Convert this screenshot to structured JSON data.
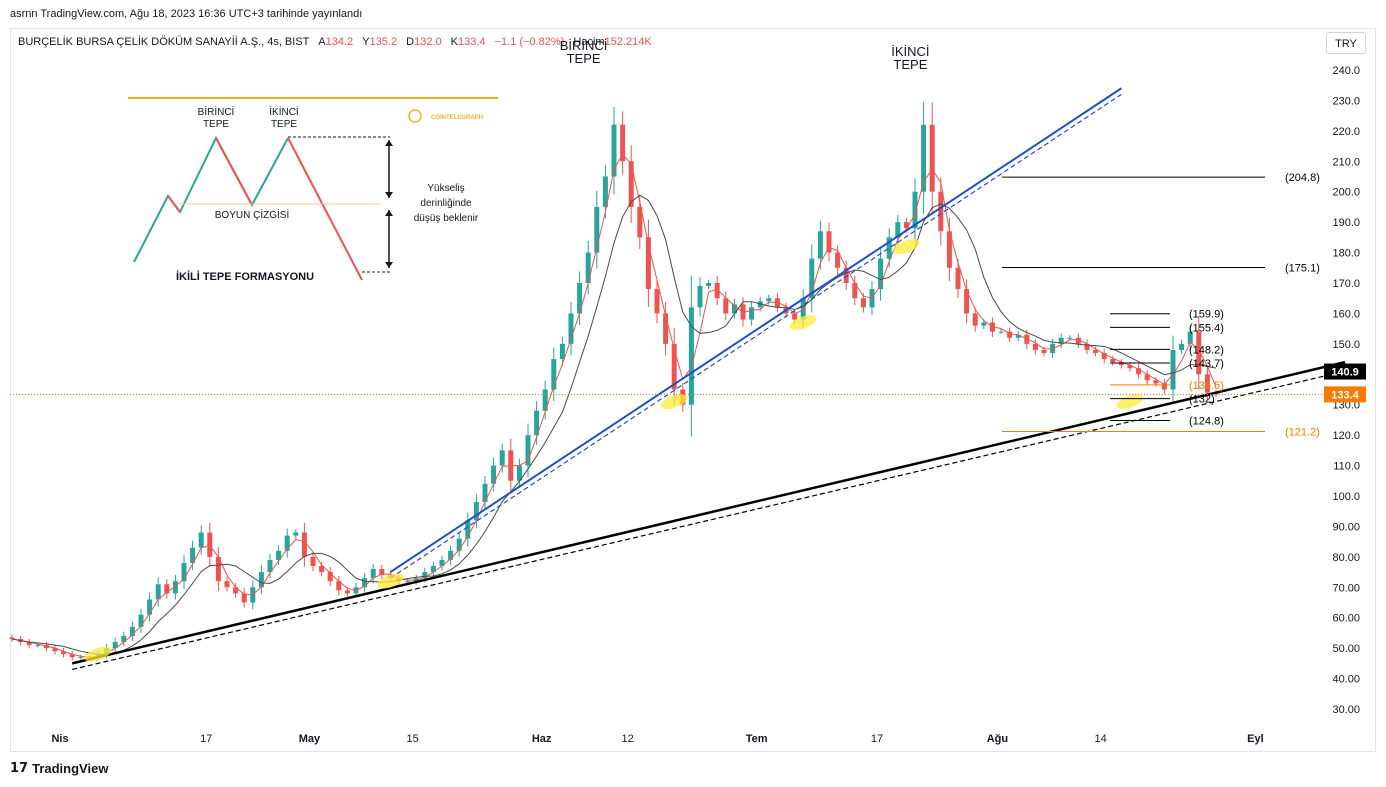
{
  "publish_line": "asrnn TradingView.com, Ağu 18, 2023 16:36 UTC+3 tarihinde yayınlandı",
  "legend": {
    "symbol": "BURÇELİK BURSA ÇELİK DÖKÜM SANAYİİ A.Ş., 4s, BIST",
    "open_label": "A",
    "open": "134.2",
    "high_label": "Y",
    "high": "135.2",
    "low_label": "D",
    "low": "132.0",
    "close_label": "K",
    "close": "133.4",
    "change": "−1.1 (−0.82%)",
    "volume_label": "Hacim",
    "volume": "152.214K"
  },
  "currency": "TRY",
  "brand": "TradingView",
  "colors": {
    "up": "#26a69a",
    "down": "#ef5350",
    "trend_blue": "#1f4fc9",
    "accent_orange": "#f57c00",
    "highlight": "#ffeb3b"
  },
  "chart_data": {
    "type": "candlestick",
    "y_axis": {
      "min": 25,
      "max": 245,
      "ticks": [
        "240.0",
        "230.0",
        "220.0",
        "210.0",
        "200.0",
        "190.0",
        "180.0",
        "170.0",
        "160.0",
        "150.0",
        "140.0",
        "130.0",
        "120.0",
        "110.0",
        "100.0",
        "90.00",
        "80.00",
        "70.00",
        "60.00",
        "50.00",
        "40.00",
        "30.00"
      ]
    },
    "x_ticks": [
      {
        "label": "Nis",
        "i": 0,
        "bold": true
      },
      {
        "label": "17",
        "i": 17
      },
      {
        "label": "May",
        "i": 29,
        "bold": true
      },
      {
        "label": "15",
        "i": 41
      },
      {
        "label": "Haz",
        "i": 56,
        "bold": true
      },
      {
        "label": "12",
        "i": 66
      },
      {
        "label": "Tem",
        "i": 81,
        "bold": true
      },
      {
        "label": "17",
        "i": 95
      },
      {
        "label": "Ağu",
        "i": 109,
        "bold": true
      },
      {
        "label": "14",
        "i": 121
      },
      {
        "label": "Eyl",
        "i": 139,
        "bold": true
      }
    ],
    "candles_close": [
      53,
      52,
      51,
      51,
      50,
      49,
      48,
      47,
      47,
      47,
      48,
      50,
      52,
      54,
      57,
      61,
      66,
      71,
      68,
      72,
      78,
      83,
      88,
      80,
      72,
      70,
      68,
      65,
      70,
      75,
      79,
      82,
      87,
      88,
      80,
      77,
      75,
      72,
      69,
      68,
      70,
      73,
      76,
      74,
      73,
      72,
      72,
      73,
      75,
      77,
      79,
      82,
      86,
      92,
      98,
      104,
      110,
      115,
      105,
      110,
      120,
      128,
      135,
      145,
      150,
      160,
      170,
      180,
      195,
      205,
      222,
      210,
      195,
      185,
      168,
      160,
      150,
      135,
      130,
      162,
      169,
      170,
      165,
      160,
      163,
      158,
      162,
      164,
      165,
      162,
      160,
      158,
      165,
      178,
      187,
      180,
      175,
      170,
      165,
      162,
      168,
      178,
      185,
      190,
      188,
      200,
      222,
      200,
      187,
      175,
      168,
      160,
      156,
      157,
      154,
      154,
      152,
      153,
      150,
      148,
      147,
      150,
      152,
      152,
      150,
      148,
      147,
      145,
      144,
      143,
      142,
      140,
      138,
      137,
      135,
      148,
      150,
      154,
      140,
      134,
      133.4
    ],
    "price_lines": [
      {
        "value": 204.8,
        "label": "(204.8)",
        "color": "#000000"
      },
      {
        "value": 175.1,
        "label": "(175.1)",
        "color": "#000000"
      },
      {
        "value": 159.9,
        "label": "(159.9)",
        "color": "#000000"
      },
      {
        "value": 155.4,
        "label": "(155.4)",
        "color": "#000000"
      },
      {
        "value": 148.2,
        "label": "(148.2)",
        "color": "#000000"
      },
      {
        "value": 143.7,
        "label": "(143.7)",
        "color": "#000000"
      },
      {
        "value": 136.5,
        "label": "(136.5)",
        "color": "#f57c00"
      },
      {
        "value": 132,
        "label": "(132)",
        "color": "#000000"
      },
      {
        "value": 124.8,
        "label": "(124.8)",
        "color": "#000000"
      },
      {
        "value": 121.2,
        "label": "(121.2)",
        "color": "#f57c00"
      }
    ],
    "price_badges": [
      {
        "value": 140.9,
        "label": "140.9",
        "color": "#000000"
      },
      {
        "value": 133.4,
        "label": "133.4",
        "color": "#f57c00"
      }
    ],
    "annotations": [
      {
        "text": "BİRİNCİ",
        "text2": "TEPE",
        "i": 66,
        "value": 242
      },
      {
        "text": "İKİNCİ",
        "text2": "TEPE",
        "i": 104,
        "value": 240
      }
    ],
    "trendlines": [
      {
        "from": [
          7,
          45
        ],
        "to": [
          155,
          144
        ],
        "color": "#000000",
        "style": "solid"
      },
      {
        "from": [
          7,
          43
        ],
        "to": [
          155,
          141
        ],
        "color": "#000000",
        "style": "dashed"
      },
      {
        "from": [
          44,
          75
        ],
        "to": [
          129,
          234
        ],
        "color": "#1f4fc9",
        "style": "solid"
      },
      {
        "from": [
          44,
          73
        ],
        "to": [
          129,
          232
        ],
        "color": "#1f4fc9",
        "style": "dashed"
      }
    ],
    "inset": {
      "title": "İKİLİ TEPE FORMASYONU",
      "peak1": "BİRİNCİ",
      "peak1b": "TEPE",
      "peak2": "İKİNCİ",
      "peak2b": "TEPE",
      "neckline": "BOYUN ÇİZGİSİ",
      "note1": "Yükseliş",
      "note2": "derinliğinde",
      "note3": "düşüş beklenir",
      "logo_text": "COINTELEGRAPH"
    }
  }
}
